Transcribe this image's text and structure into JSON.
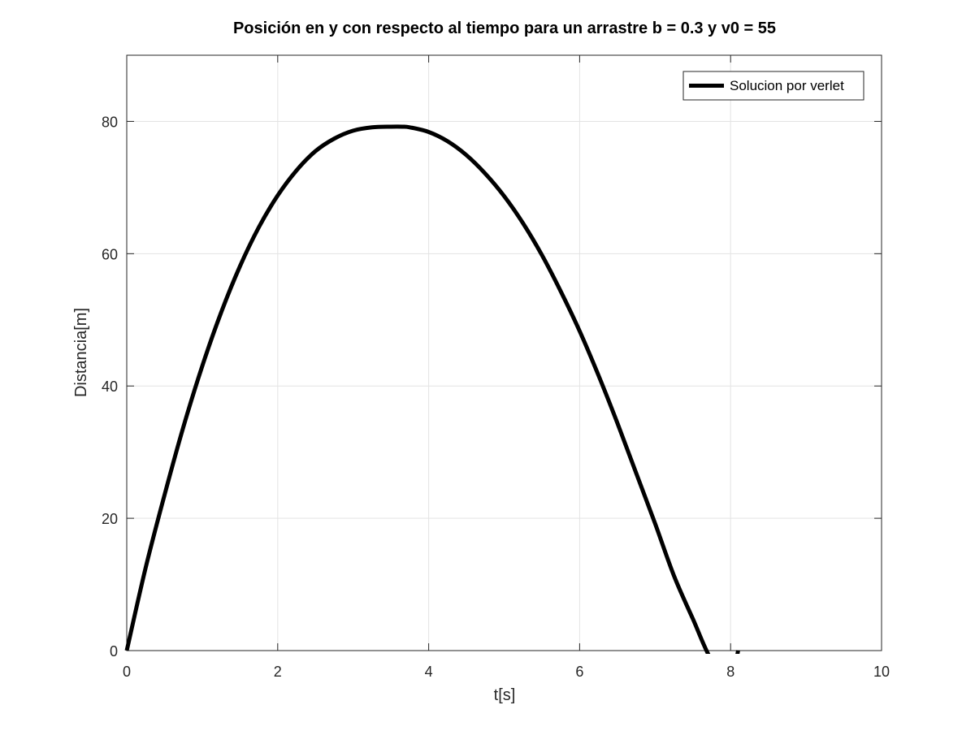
{
  "chart_data": {
    "type": "line",
    "title": "Posición en y con respecto al tiempo para un arrastre b = 0.3 y  v0 = 55",
    "xlabel": "t[s]",
    "ylabel": "Distancia[m]",
    "xlim": [
      0,
      10
    ],
    "ylim": [
      0,
      90
    ],
    "xticks": [
      0,
      2,
      4,
      6,
      8,
      10
    ],
    "yticks": [
      0,
      20,
      40,
      60,
      80
    ],
    "grid": true,
    "legend_position": "top-right",
    "series": [
      {
        "name": "Solucion por verlet",
        "color": "#000000",
        "x": [
          0,
          0.25,
          0.5,
          0.75,
          1.0,
          1.25,
          1.5,
          1.75,
          2.0,
          2.25,
          2.5,
          2.75,
          3.0,
          3.25,
          3.5,
          3.65,
          3.75,
          4.0,
          4.25,
          4.5,
          4.75,
          5.0,
          5.25,
          5.5,
          5.75,
          6.0,
          6.25,
          6.5,
          6.75,
          7.0,
          7.25,
          7.5,
          7.75,
          8.0,
          8.1
        ],
        "y": [
          0,
          12.5,
          23.5,
          33.8,
          43.0,
          51.1,
          58.1,
          64.0,
          68.8,
          72.6,
          75.5,
          77.4,
          78.6,
          79.1,
          79.2,
          79.2,
          79.1,
          78.4,
          77.0,
          74.9,
          72.1,
          68.7,
          64.6,
          59.8,
          54.3,
          48.3,
          41.6,
          34.4,
          26.8,
          19.2,
          11.3,
          4.8,
          -1.5,
          -4.0,
          0
        ]
      }
    ]
  }
}
